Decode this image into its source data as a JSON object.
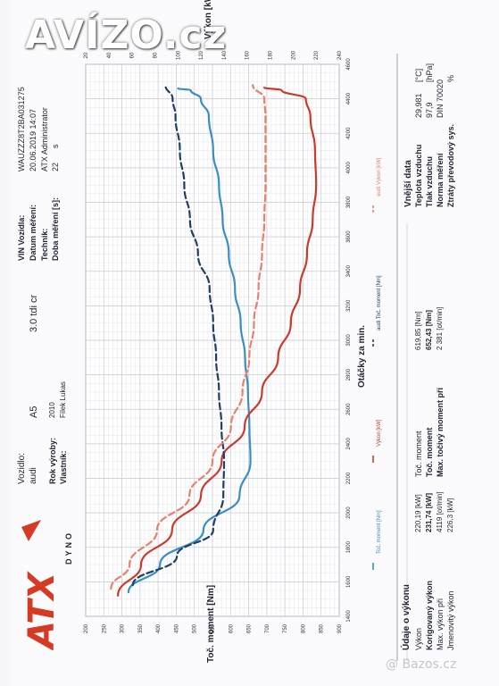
{
  "watermark": {
    "top": "AVÍZO.cz",
    "bottom": "@ Bazos.cz"
  },
  "brand": {
    "logo_text": "ATX",
    "sub": "DYNO"
  },
  "vehicle": {
    "vozidlo_label": "Vozidlo:",
    "vozidlo_value": "audi",
    "model": "A5",
    "engine": "3.0 tdi cr",
    "rok_label": "Rok výroby:",
    "rok_value": "2010",
    "vlastnik_label": "Vlastník:",
    "vlastnik_value": "Fílek Lukas"
  },
  "test": {
    "vin_label": "VIN Vozidla:",
    "vin_value": "WAUZZZ8T2BA031275",
    "datum_label": "Datum měření:",
    "datum_value": "20.06.2019 14:07",
    "technik_label": "Technik:",
    "technik_value": "ATX Administrator",
    "doba_label": "Doba měření [s]:",
    "doba_value": "22",
    "doba_unit": "s"
  },
  "results": {
    "header": "Údaje o výkonu",
    "rows": [
      {
        "label": "Výkon",
        "value": "220,19 [kW]",
        "tlabel": "Toč. moment",
        "tvalue": "619,85 [Nm]"
      },
      {
        "label": "Korigovaný výkon",
        "value": "231,74 [kW]",
        "tlabel": "Toč. moment",
        "tvalue": "652,43 [Nm]"
      },
      {
        "label": "Max. výkon při",
        "value": "4119 [ot/min]",
        "tlabel": "Max. točivý moment při",
        "tvalue": "2 381 [ot/min]"
      },
      {
        "label": "Jmenovitý výkon",
        "value": "226,3 [kW]",
        "tlabel": "",
        "tvalue": ""
      }
    ]
  },
  "ambient": {
    "header": "Vnější data",
    "rows": [
      {
        "label": "Teplota vzduchu",
        "value": "29,981",
        "unit": "[°C]"
      },
      {
        "label": "Tlak vzduchu",
        "value": "97,9",
        "unit": "[hPa]"
      },
      {
        "label": "Norma měření",
        "value": "DIN 70020",
        "unit": ""
      },
      {
        "label": "Ztráty převodový sys.",
        "value": "",
        "unit": "%"
      }
    ]
  },
  "legend": [
    "Toč. moment [Nm]",
    "Výkon [kW]",
    "audi Toč. moment [Nm]",
    "audi Výkon [kW]"
  ],
  "chart_data": {
    "type": "line",
    "xlabel": "Otáčky za min.",
    "y_torque_label": "Toč. moment [Nm]",
    "y_power_label": "Výkon [kW]",
    "xlim": [
      1400,
      4600
    ],
    "torque_lim": [
      200,
      900
    ],
    "power_lim": [
      20,
      240
    ],
    "x_ticks": [
      1400,
      1600,
      1800,
      2000,
      2200,
      2400,
      2600,
      2800,
      3000,
      3200,
      3400,
      3600,
      3800,
      4000,
      4200,
      4400,
      4600
    ],
    "torque_ticks": [
      900,
      850,
      800,
      750,
      700,
      650,
      600,
      550,
      500,
      450,
      400,
      350,
      300,
      250,
      200
    ],
    "power_ticks": [
      240,
      220,
      200,
      180,
      160,
      140,
      120,
      100,
      80,
      60,
      40,
      20
    ],
    "grid": true,
    "colors": {
      "torque": "#3a8fc2",
      "power": "#cc3a2a",
      "torque_ref": "#1f3f66",
      "power_ref": "#e8816a"
    },
    "series": [
      {
        "name": "Toč. moment [Nm]",
        "axis": "torque",
        "dash": false,
        "x": [
          1540,
          1700,
          1900,
          2100,
          2300,
          2500,
          2700,
          2900,
          3100,
          3300,
          3500,
          3700,
          3900,
          4100,
          4300,
          4400,
          4450,
          4460
        ],
        "y": [
          318,
          405,
          525,
          625,
          655,
          652,
          648,
          640,
          628,
          612,
          595,
          578,
          568,
          552,
          540,
          518,
          490,
          455
        ]
      },
      {
        "name": "Výkon [kW]",
        "axis": "power",
        "dash": false,
        "x": [
          1520,
          1700,
          1900,
          2100,
          2300,
          2500,
          2700,
          2900,
          3100,
          3300,
          3500,
          3700,
          3900,
          4100,
          4300,
          4400,
          4450,
          4465
        ],
        "y": [
          48,
          68,
          95,
          120,
          138,
          158,
          173,
          187,
          198,
          206,
          212,
          217,
          220,
          219,
          215,
          211,
          190,
          175
        ]
      },
      {
        "name": "audi Toč. moment [Nm]",
        "axis": "torque",
        "dash": true,
        "x": [
          1580,
          1750,
          1900,
          2100,
          2300,
          2500,
          2700,
          2900,
          3100,
          3300,
          3500,
          3700,
          3900,
          4100,
          4300,
          4400,
          4480
        ],
        "y": [
          330,
          452,
          552,
          580,
          582,
          575,
          568,
          560,
          552,
          542,
          510,
          488,
          472,
          460,
          448,
          440,
          420
        ]
      },
      {
        "name": "audi Výkon [kW]",
        "axis": "power",
        "dash": true,
        "x": [
          1560,
          1700,
          1900,
          2100,
          2300,
          2500,
          2700,
          2900,
          3100,
          3300,
          3500,
          3700,
          3900,
          4100,
          4300,
          4400,
          4480
        ],
        "y": [
          42,
          58,
          82,
          110,
          130,
          146,
          156,
          162,
          166,
          170,
          173,
          175,
          176,
          176,
          176,
          175,
          165
        ]
      }
    ]
  }
}
